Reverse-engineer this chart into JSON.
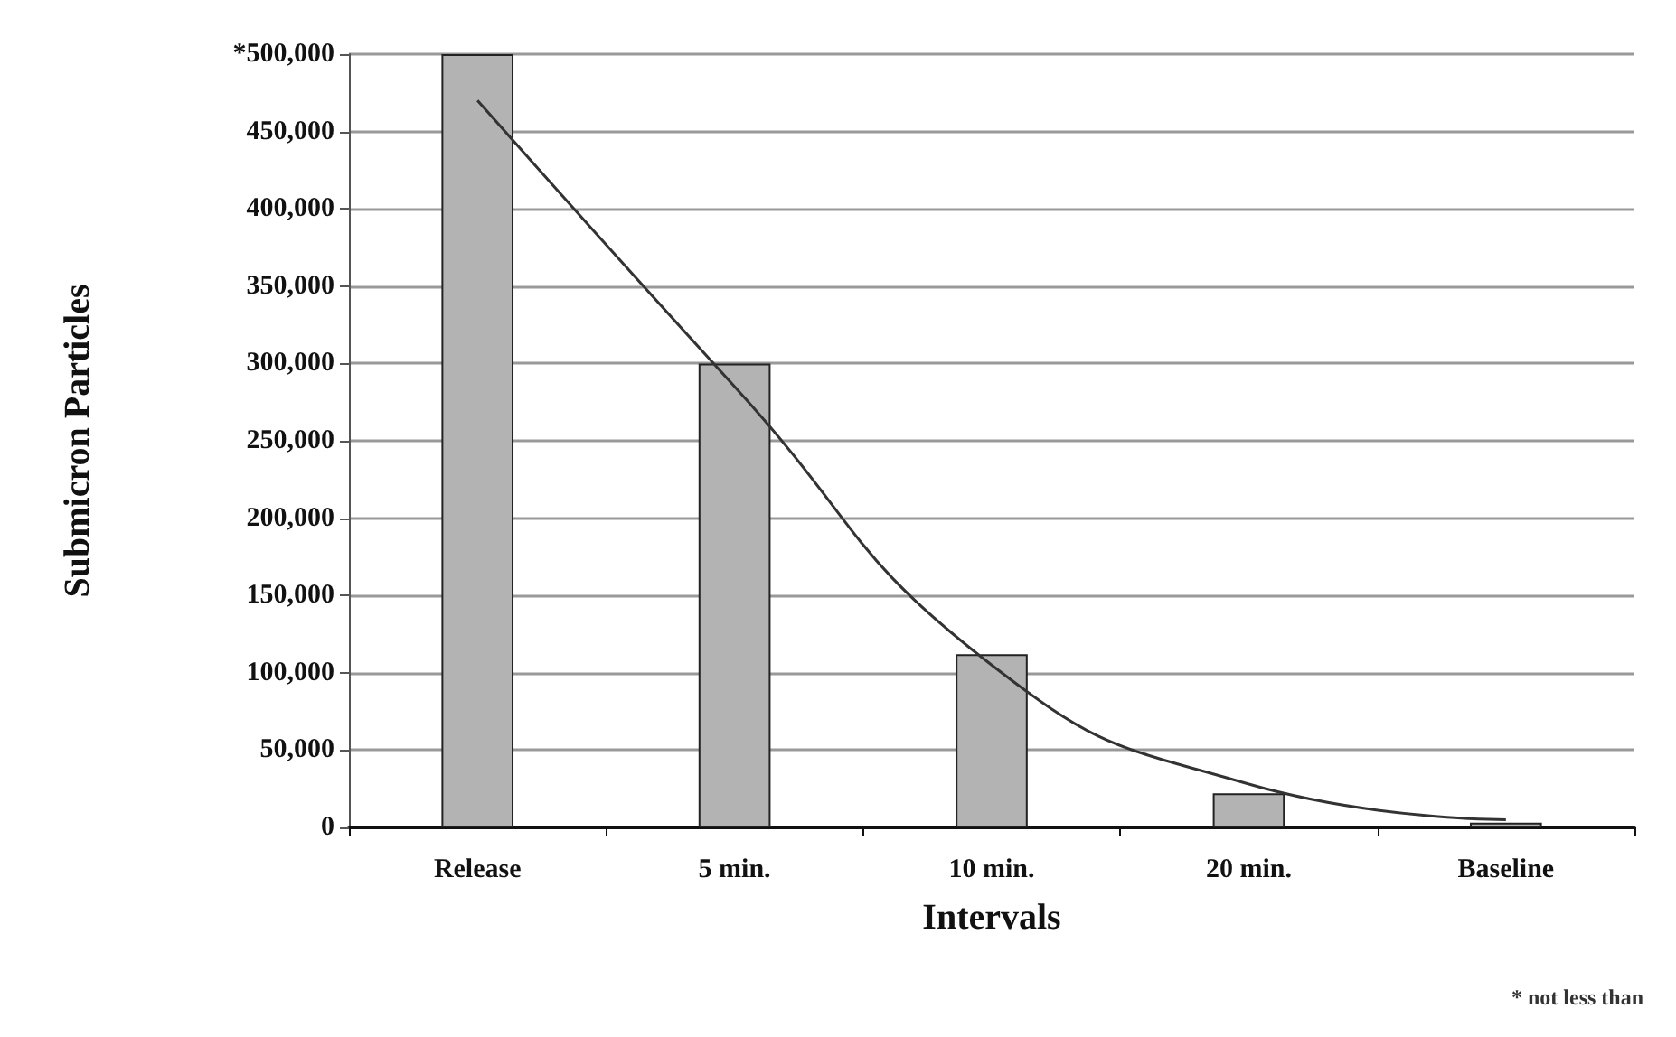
{
  "chart_data": {
    "type": "bar",
    "xlabel": "Intervals",
    "ylabel": "Submicron Particles",
    "categories": [
      "Release",
      "5 min.",
      "10 min.",
      "20 min.",
      "Baseline"
    ],
    "series": [
      {
        "color": "#b3b3b3",
        "values": [
          500000,
          300000,
          112000,
          22000,
          3000
        ]
      },
      {
        "type": "line",
        "color": "#333333",
        "values": [
          470000,
          285000,
          105000,
          28000,
          5000
        ]
      }
    ],
    "ylim": [
      0,
      500000
    ],
    "yticks": [
      {
        "value": 0,
        "label": "0"
      },
      {
        "value": 50000,
        "label": "50,000"
      },
      {
        "value": 100000,
        "label": "100,000"
      },
      {
        "value": 150000,
        "label": "150,000"
      },
      {
        "value": 200000,
        "label": "200,000"
      },
      {
        "value": 250000,
        "label": "250,000"
      },
      {
        "value": 300000,
        "label": "300,000"
      },
      {
        "value": 350000,
        "label": "350,000"
      },
      {
        "value": 400000,
        "label": "400,000"
      },
      {
        "value": 450000,
        "label": "450,000"
      },
      {
        "value": 500000,
        "label": "*500,000"
      }
    ],
    "grid": "y",
    "marker": "none",
    "annotations": [
      "* not less than"
    ]
  }
}
